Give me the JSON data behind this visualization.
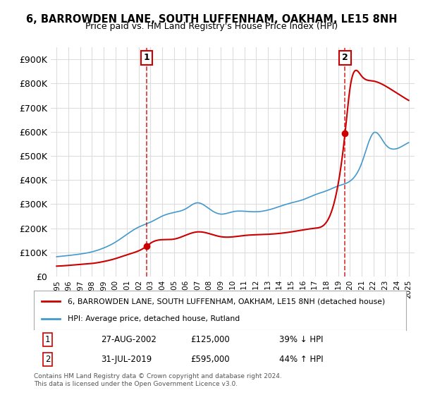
{
  "title": "6, BARROWDEN LANE, SOUTH LUFFENHAM, OAKHAM, LE15 8NH",
  "subtitle": "Price paid vs. HM Land Registry's House Price Index (HPI)",
  "xlabel": "",
  "ylabel": "",
  "ylim": [
    0,
    950000
  ],
  "yticks": [
    0,
    100000,
    200000,
    300000,
    400000,
    500000,
    600000,
    700000,
    800000,
    900000
  ],
  "ytick_labels": [
    "£0",
    "£100K",
    "£200K",
    "£300K",
    "£400K",
    "£500K",
    "£600K",
    "£700K",
    "£800K",
    "£900K"
  ],
  "sale1": {
    "date_x": 2002.65,
    "price": 125000,
    "label": "1",
    "date_str": "27-AUG-2002",
    "price_str": "£125,000",
    "hpi_str": "39% ↓ HPI"
  },
  "sale2": {
    "date_x": 2019.58,
    "price": 595000,
    "label": "2",
    "date_str": "31-JUL-2019",
    "price_str": "£595,000",
    "hpi_str": "44% ↑ HPI"
  },
  "red_line_color": "#cc0000",
  "blue_line_color": "#4499cc",
  "background_color": "#ffffff",
  "grid_color": "#dddddd",
  "legend_label_red": "6, BARROWDEN LANE, SOUTH LUFFENHAM, OAKHAM, LE15 8NH (detached house)",
  "legend_label_blue": "HPI: Average price, detached house, Rutland",
  "footer": "Contains HM Land Registry data © Crown copyright and database right 2024.\nThis data is licensed under the Open Government Licence v3.0.",
  "xlim_start": 1994.5,
  "xlim_end": 2025.5
}
